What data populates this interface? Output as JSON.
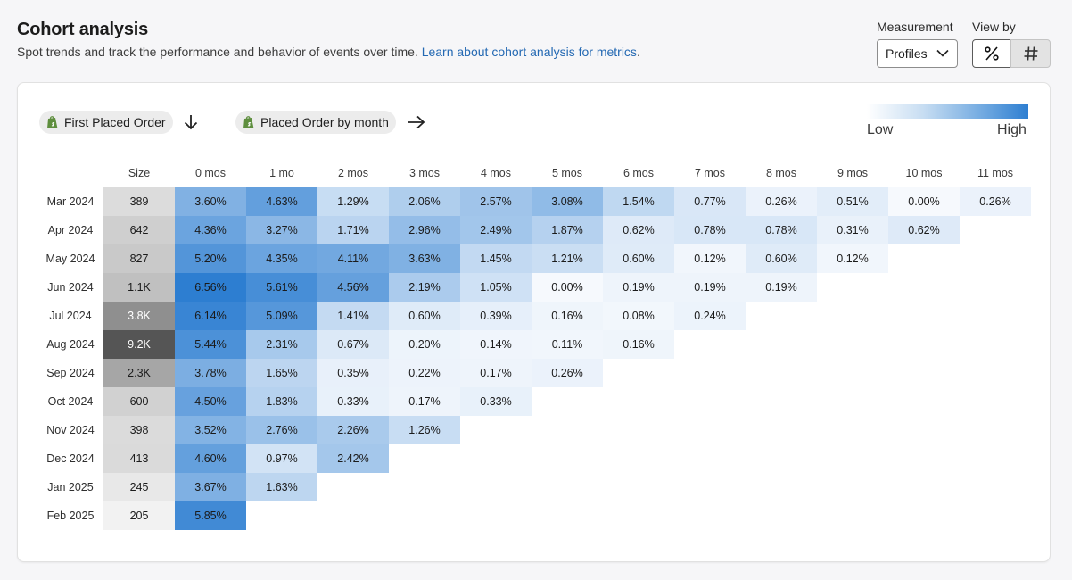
{
  "header": {
    "title": "Cohort analysis",
    "subtitle": "Spot trends and track the performance and behavior of events over time.",
    "link": "Learn about cohort analysis for metrics",
    "period": "."
  },
  "measurement": {
    "label": "Measurement",
    "value": "Profiles"
  },
  "view_by": {
    "label": "View by",
    "options": [
      "%",
      "#"
    ],
    "selected": "%"
  },
  "filters": {
    "row_metric": "First Placed Order",
    "col_metric": "Placed Order by month",
    "row_icon": "arrow-down-icon",
    "col_icon": "arrow-right-icon"
  },
  "legend": {
    "low": "Low",
    "high": "High",
    "low_color": "#ffffff",
    "high_color": "#2d7ed1"
  },
  "chart_data": {
    "type": "heatmap",
    "size_header": "Size",
    "columns": [
      "0 mos",
      "1 mo",
      "2 mos",
      "3 mos",
      "4 mos",
      "5 mos",
      "6 mos",
      "7 mos",
      "8 mos",
      "9 mos",
      "10 mos",
      "11 mos"
    ],
    "rows": [
      {
        "label": "Mar 2024",
        "size": "389",
        "size_value": 389,
        "values": [
          3.6,
          4.63,
          1.29,
          2.06,
          2.57,
          3.08,
          1.54,
          0.77,
          0.26,
          0.51,
          0.0,
          0.26
        ]
      },
      {
        "label": "Apr 2024",
        "size": "642",
        "size_value": 642,
        "values": [
          4.36,
          3.27,
          1.71,
          2.96,
          2.49,
          1.87,
          0.62,
          0.78,
          0.78,
          0.31,
          0.62
        ]
      },
      {
        "label": "May 2024",
        "size": "827",
        "size_value": 827,
        "values": [
          5.2,
          4.35,
          4.11,
          3.63,
          1.45,
          1.21,
          0.6,
          0.12,
          0.6,
          0.12
        ]
      },
      {
        "label": "Jun 2024",
        "size": "1.1K",
        "size_value": 1100,
        "values": [
          6.56,
          5.61,
          4.56,
          2.19,
          1.05,
          0.0,
          0.19,
          0.19,
          0.19
        ]
      },
      {
        "label": "Jul 2024",
        "size": "3.8K",
        "size_value": 3800,
        "values": [
          6.14,
          5.09,
          1.41,
          0.6,
          0.39,
          0.16,
          0.08,
          0.24
        ]
      },
      {
        "label": "Aug 2024",
        "size": "9.2K",
        "size_value": 9200,
        "values": [
          5.44,
          2.31,
          0.67,
          0.2,
          0.14,
          0.11,
          0.16
        ]
      },
      {
        "label": "Sep 2024",
        "size": "2.3K",
        "size_value": 2300,
        "values": [
          3.78,
          1.65,
          0.35,
          0.22,
          0.17,
          0.26
        ]
      },
      {
        "label": "Oct 2024",
        "size": "600",
        "size_value": 600,
        "values": [
          4.5,
          1.83,
          0.33,
          0.17,
          0.33
        ]
      },
      {
        "label": "Nov 2024",
        "size": "398",
        "size_value": 398,
        "values": [
          3.52,
          2.76,
          2.26,
          1.26
        ]
      },
      {
        "label": "Dec 2024",
        "size": "413",
        "size_value": 413,
        "values": [
          4.6,
          0.97,
          2.42
        ]
      },
      {
        "label": "Jan 2025",
        "size": "245",
        "size_value": 245,
        "values": [
          3.67,
          1.63
        ]
      },
      {
        "label": "Feb 2025",
        "size": "205",
        "size_value": 205,
        "values": [
          5.85
        ]
      }
    ],
    "value_suffix": "%",
    "color_low": "#ffffff",
    "color_high": "#2d7ed1",
    "size_color_low": "#f2f2f2",
    "size_color_high": "#555555"
  }
}
